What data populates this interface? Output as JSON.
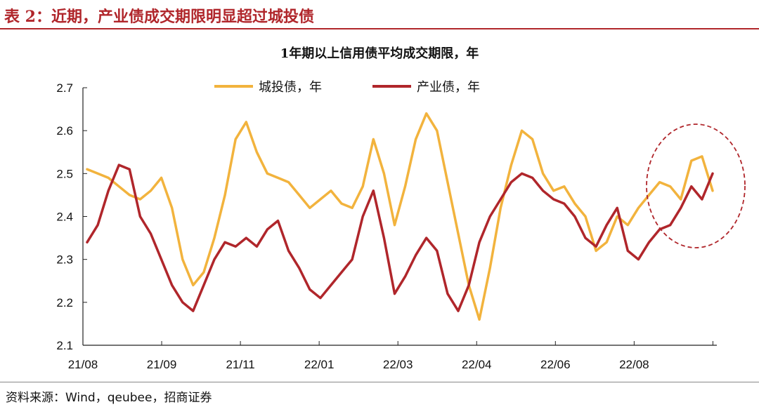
{
  "header": {
    "title": "表 2：近期，产业债成交期限明显超过城投债"
  },
  "source": "资料来源：Wind，qeubee，招商证券",
  "chart_data": {
    "type": "line",
    "title": "1年期以上信用债平均成交期限，年",
    "xlabel": "",
    "ylabel": "",
    "ylim": [
      2.1,
      2.7
    ],
    "yticks": [
      "2.1",
      "2.2",
      "2.3",
      "2.4",
      "2.5",
      "2.6",
      "2.7"
    ],
    "xticks": [
      "21/08",
      "21/09",
      "21/11",
      "22/01",
      "22/03",
      "22/04",
      "22/06",
      "22/08"
    ],
    "legend_position": "top",
    "grid": false,
    "n_points": 60,
    "series": [
      {
        "name": "城投债，年",
        "color": "#f2b33d",
        "values": [
          2.51,
          2.5,
          2.49,
          2.47,
          2.45,
          2.44,
          2.46,
          2.49,
          2.42,
          2.3,
          2.24,
          2.27,
          2.35,
          2.45,
          2.58,
          2.62,
          2.55,
          2.5,
          2.49,
          2.48,
          2.45,
          2.42,
          2.44,
          2.46,
          2.43,
          2.42,
          2.47,
          2.58,
          2.5,
          2.38,
          2.47,
          2.58,
          2.64,
          2.6,
          2.48,
          2.36,
          2.24,
          2.16,
          2.28,
          2.42,
          2.52,
          2.6,
          2.58,
          2.5,
          2.46,
          2.47,
          2.43,
          2.4,
          2.32,
          2.34,
          2.4,
          2.38,
          2.42,
          2.45,
          2.48,
          2.47,
          2.44,
          2.53,
          2.54,
          2.46
        ]
      },
      {
        "name": "产业债，年",
        "color": "#b0262b",
        "values": [
          2.34,
          2.38,
          2.46,
          2.52,
          2.51,
          2.4,
          2.36,
          2.3,
          2.24,
          2.2,
          2.18,
          2.24,
          2.3,
          2.34,
          2.33,
          2.35,
          2.33,
          2.37,
          2.39,
          2.32,
          2.28,
          2.23,
          2.21,
          2.24,
          2.27,
          2.3,
          2.4,
          2.46,
          2.35,
          2.22,
          2.26,
          2.31,
          2.35,
          2.32,
          2.22,
          2.18,
          2.24,
          2.34,
          2.4,
          2.44,
          2.48,
          2.5,
          2.49,
          2.46,
          2.44,
          2.43,
          2.4,
          2.35,
          2.33,
          2.38,
          2.42,
          2.32,
          2.3,
          2.34,
          2.37,
          2.38,
          2.42,
          2.47,
          2.44,
          2.5
        ]
      }
    ]
  }
}
